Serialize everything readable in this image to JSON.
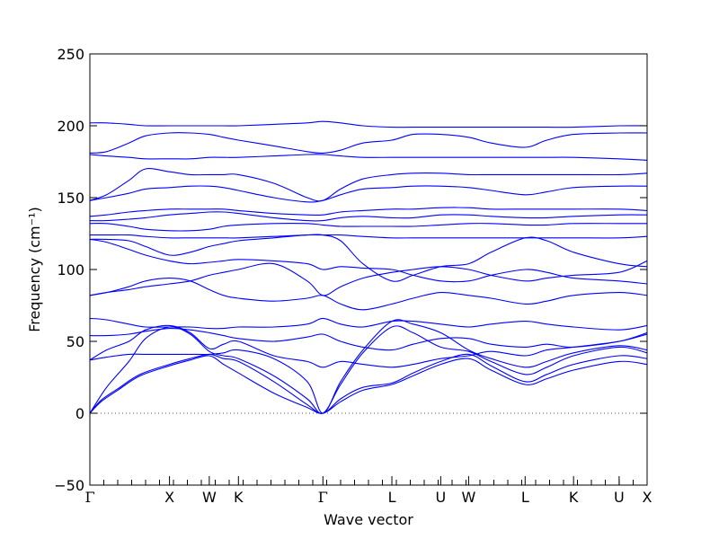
{
  "chart_data": {
    "type": "line",
    "title": "",
    "xlabel": "Wave vector",
    "ylabel": "Frequency (cm⁻¹)",
    "ylim": [
      -50,
      250
    ],
    "yticks": [
      -50,
      0,
      50,
      100,
      150,
      200,
      250
    ],
    "ytick_labels": [
      "−50",
      "0",
      "50",
      "100",
      "150",
      "200",
      "250"
    ],
    "grid": false,
    "legend": "none",
    "zero_line": {
      "y": 0,
      "style": "dotted",
      "color": "#555555"
    },
    "line_color": "#0000ff",
    "high_symmetry_points": [
      {
        "label": "Γ",
        "x": 0.0
      },
      {
        "label": "X",
        "x": 0.1429
      },
      {
        "label": "W",
        "x": 0.2143
      },
      {
        "label": "K",
        "x": 0.2666
      },
      {
        "label": "Γ",
        "x": 0.4182
      },
      {
        "label": "L",
        "x": 0.542
      },
      {
        "label": "U",
        "x": 0.6296
      },
      {
        "label": "W",
        "x": 0.6797
      },
      {
        "label": "L",
        "x": 0.7811
      },
      {
        "label": "K",
        "x": 0.868
      },
      {
        "label": "U",
        "x": 0.9498
      },
      {
        "label": "X",
        "x": 1.0
      }
    ],
    "x_minor_ticks": 40,
    "series": [
      {
        "x": [
          0,
          0.02,
          0.05,
          0.09,
          0.1429,
          0.18,
          0.2143,
          0.24,
          0.2666,
          0.33,
          0.39,
          0.4182,
          0.45,
          0.49,
          0.542,
          0.58,
          0.6296,
          0.6797,
          0.72,
          0.7811,
          0.82,
          0.868,
          0.9498,
          1.0
        ],
        "y": [
          0,
          8,
          16,
          26,
          33,
          37,
          40,
          34,
          28,
          14,
          4,
          0,
          8,
          16,
          20,
          26,
          34,
          38,
          30,
          20,
          24,
          30,
          36,
          34
        ]
      },
      {
        "x": [
          0,
          0.02,
          0.05,
          0.09,
          0.1429,
          0.18,
          0.2143,
          0.24,
          0.2666,
          0.33,
          0.39,
          0.4182,
          0.45,
          0.49,
          0.542,
          0.58,
          0.6296,
          0.6797,
          0.72,
          0.7811,
          0.82,
          0.868,
          0.9498,
          1.0
        ],
        "y": [
          0,
          9,
          17,
          27,
          34,
          38,
          41,
          38,
          36,
          22,
          6,
          0,
          10,
          18,
          21,
          28,
          36,
          41,
          33,
          22,
          27,
          34,
          40,
          38
        ]
      },
      {
        "x": [
          0,
          0.03,
          0.07,
          0.1,
          0.1429,
          0.18,
          0.2143,
          0.24,
          0.2666,
          0.33,
          0.39,
          0.4182,
          0.45,
          0.49,
          0.542,
          0.58,
          0.6296,
          0.6797,
          0.72,
          0.7811,
          0.82,
          0.868,
          0.9498,
          1.0
        ],
        "y": [
          0,
          18,
          36,
          52,
          60,
          55,
          43,
          40,
          38,
          26,
          10,
          0,
          20,
          42,
          60,
          56,
          46,
          43,
          36,
          27,
          32,
          40,
          46,
          42
        ]
      },
      {
        "x": [
          0,
          0.03,
          0.07,
          0.1,
          0.1429,
          0.18,
          0.2143,
          0.24,
          0.2666,
          0.33,
          0.39,
          0.4182,
          0.45,
          0.49,
          0.542,
          0.58,
          0.6296,
          0.6797,
          0.72,
          0.7811,
          0.82,
          0.868,
          0.9498,
          1.0
        ],
        "y": [
          37,
          39,
          41,
          41,
          41,
          41,
          41,
          42,
          44,
          38,
          22,
          0,
          22,
          44,
          64,
          62,
          56,
          44,
          38,
          32,
          36,
          42,
          47,
          44
        ]
      },
      {
        "x": [
          0,
          0.03,
          0.07,
          0.1,
          0.1429,
          0.18,
          0.2143,
          0.24,
          0.2666,
          0.33,
          0.39,
          0.4182,
          0.45,
          0.49,
          0.542,
          0.58,
          0.6296,
          0.6797,
          0.72,
          0.7811,
          0.82,
          0.868,
          0.9498,
          1.0
        ],
        "y": [
          37,
          44,
          50,
          58,
          61,
          56,
          45,
          48,
          50,
          40,
          36,
          32,
          36,
          34,
          32,
          34,
          38,
          40,
          43,
          40,
          44,
          46,
          50,
          55
        ]
      },
      {
        "x": [
          0,
          0.03,
          0.07,
          0.1,
          0.1429,
          0.18,
          0.2143,
          0.24,
          0.2666,
          0.33,
          0.39,
          0.4182,
          0.45,
          0.49,
          0.542,
          0.58,
          0.6296,
          0.6797,
          0.72,
          0.7811,
          0.82,
          0.868,
          0.9498,
          1.0
        ],
        "y": [
          54,
          54,
          55,
          57,
          59,
          58,
          56,
          54,
          52,
          50,
          53,
          55,
          50,
          46,
          44,
          48,
          52,
          52,
          48,
          46,
          48,
          46,
          50,
          56
        ]
      },
      {
        "x": [
          0,
          0.03,
          0.07,
          0.1,
          0.1429,
          0.18,
          0.2143,
          0.24,
          0.2666,
          0.33,
          0.39,
          0.4182,
          0.45,
          0.49,
          0.542,
          0.58,
          0.6296,
          0.6797,
          0.72,
          0.7811,
          0.82,
          0.868,
          0.9498,
          1.0
        ],
        "y": [
          66,
          65,
          62,
          60,
          60,
          60,
          59,
          59,
          60,
          60,
          62,
          66,
          62,
          60,
          64,
          64,
          62,
          60,
          62,
          64,
          62,
          60,
          58,
          61
        ]
      },
      {
        "x": [
          0,
          0.03,
          0.07,
          0.1,
          0.1429,
          0.18,
          0.2143,
          0.24,
          0.2666,
          0.33,
          0.39,
          0.4182,
          0.45,
          0.49,
          0.542,
          0.58,
          0.6296,
          0.6797,
          0.72,
          0.7811,
          0.82,
          0.868,
          0.9498,
          1.0
        ],
        "y": [
          82,
          84,
          88,
          92,
          94,
          92,
          86,
          82,
          80,
          78,
          80,
          82,
          76,
          72,
          76,
          80,
          84,
          82,
          80,
          76,
          78,
          82,
          84,
          82
        ]
      },
      {
        "x": [
          0,
          0.03,
          0.07,
          0.1,
          0.1429,
          0.18,
          0.2143,
          0.24,
          0.2666,
          0.33,
          0.39,
          0.4182,
          0.45,
          0.49,
          0.542,
          0.58,
          0.6296,
          0.6797,
          0.72,
          0.7811,
          0.82,
          0.868,
          0.9498,
          1.0
        ],
        "y": [
          82,
          84,
          86,
          88,
          90,
          92,
          96,
          98,
          100,
          104,
          92,
          82,
          88,
          94,
          98,
          100,
          102,
          100,
          96,
          92,
          94,
          96,
          98,
          106
        ]
      },
      {
        "x": [
          0,
          0.03,
          0.07,
          0.1,
          0.1429,
          0.18,
          0.2143,
          0.24,
          0.2666,
          0.33,
          0.39,
          0.4182,
          0.45,
          0.49,
          0.542,
          0.58,
          0.6296,
          0.6797,
          0.72,
          0.7811,
          0.82,
          0.868,
          0.9498,
          1.0
        ],
        "y": [
          121,
          119,
          114,
          110,
          106,
          104,
          105,
          106,
          107,
          106,
          104,
          100,
          102,
          101,
          100,
          96,
          92,
          92,
          96,
          100,
          98,
          94,
          92,
          90
        ]
      },
      {
        "x": [
          0,
          0.03,
          0.07,
          0.1,
          0.1429,
          0.18,
          0.2143,
          0.24,
          0.2666,
          0.33,
          0.39,
          0.4182,
          0.45,
          0.49,
          0.542,
          0.58,
          0.6296,
          0.6797,
          0.72,
          0.7811,
          0.82,
          0.868,
          0.9498,
          1.0
        ],
        "y": [
          121,
          121,
          120,
          116,
          110,
          112,
          116,
          118,
          120,
          122,
          124,
          124,
          120,
          104,
          92,
          96,
          102,
          104,
          112,
          122,
          120,
          112,
          104,
          102
        ]
      },
      {
        "x": [
          0,
          0.03,
          0.07,
          0.1,
          0.1429,
          0.18,
          0.2143,
          0.24,
          0.2666,
          0.33,
          0.39,
          0.4182,
          0.45,
          0.49,
          0.542,
          0.58,
          0.6296,
          0.6797,
          0.72,
          0.7811,
          0.82,
          0.868,
          0.9498,
          1.0
        ],
        "y": [
          124,
          124,
          124,
          123,
          122,
          122,
          122,
          122,
          122,
          123,
          124,
          124,
          124,
          123,
          122,
          122,
          122,
          122,
          122,
          122,
          122,
          122,
          122,
          123
        ]
      },
      {
        "x": [
          0,
          0.03,
          0.07,
          0.1,
          0.1429,
          0.18,
          0.2143,
          0.24,
          0.2666,
          0.33,
          0.39,
          0.4182,
          0.45,
          0.49,
          0.542,
          0.58,
          0.6296,
          0.6797,
          0.72,
          0.7811,
          0.82,
          0.868,
          0.9498,
          1.0
        ],
        "y": [
          132,
          132,
          130,
          128,
          127,
          127,
          128,
          130,
          131,
          132,
          132,
          131,
          130,
          130,
          130,
          130,
          131,
          132,
          132,
          131,
          131,
          132,
          132,
          132
        ]
      },
      {
        "x": [
          0,
          0.03,
          0.07,
          0.1,
          0.1429,
          0.18,
          0.2143,
          0.24,
          0.2666,
          0.33,
          0.39,
          0.4182,
          0.45,
          0.49,
          0.542,
          0.58,
          0.6296,
          0.6797,
          0.72,
          0.7811,
          0.82,
          0.868,
          0.9498,
          1.0
        ],
        "y": [
          134,
          134,
          135,
          136,
          138,
          139,
          140,
          140,
          139,
          136,
          134,
          134,
          136,
          137,
          136,
          136,
          138,
          138,
          137,
          136,
          136,
          137,
          138,
          138
        ]
      },
      {
        "x": [
          0,
          0.03,
          0.07,
          0.1,
          0.1429,
          0.18,
          0.2143,
          0.24,
          0.2666,
          0.33,
          0.39,
          0.4182,
          0.45,
          0.49,
          0.542,
          0.58,
          0.6296,
          0.6797,
          0.72,
          0.7811,
          0.82,
          0.868,
          0.9498,
          1.0
        ],
        "y": [
          137,
          138,
          140,
          141,
          142,
          142,
          142,
          142,
          141,
          139,
          138,
          138,
          140,
          141,
          142,
          142,
          143,
          143,
          142,
          142,
          142,
          142,
          142,
          141
        ]
      },
      {
        "x": [
          0,
          0.03,
          0.07,
          0.1,
          0.1429,
          0.18,
          0.2143,
          0.24,
          0.2666,
          0.33,
          0.39,
          0.4182,
          0.45,
          0.49,
          0.542,
          0.58,
          0.6296,
          0.6797,
          0.72,
          0.7811,
          0.82,
          0.868,
          0.9498,
          1.0
        ],
        "y": [
          148,
          150,
          153,
          156,
          157,
          158,
          158,
          157,
          155,
          150,
          147,
          148,
          152,
          156,
          157,
          158,
          158,
          157,
          155,
          152,
          154,
          157,
          158,
          158
        ]
      },
      {
        "x": [
          0,
          0.03,
          0.07,
          0.1,
          0.1429,
          0.18,
          0.2143,
          0.24,
          0.2666,
          0.33,
          0.39,
          0.4182,
          0.45,
          0.49,
          0.542,
          0.58,
          0.6296,
          0.6797,
          0.72,
          0.7811,
          0.82,
          0.868,
          0.9498,
          1.0
        ],
        "y": [
          148,
          152,
          162,
          170,
          168,
          166,
          166,
          166,
          166,
          160,
          150,
          148,
          156,
          163,
          166,
          167,
          167,
          166,
          166,
          166,
          166,
          166,
          166,
          167
        ]
      },
      {
        "x": [
          0,
          0.03,
          0.07,
          0.1,
          0.1429,
          0.18,
          0.2143,
          0.24,
          0.2666,
          0.33,
          0.39,
          0.4182,
          0.45,
          0.49,
          0.542,
          0.58,
          0.6296,
          0.6797,
          0.72,
          0.7811,
          0.82,
          0.868,
          0.9498,
          1.0
        ],
        "y": [
          180,
          179,
          178,
          177,
          177,
          177,
          178,
          178,
          178,
          179,
          180,
          180,
          179,
          178,
          178,
          178,
          178,
          178,
          178,
          178,
          178,
          178,
          177,
          176
        ]
      },
      {
        "x": [
          0,
          0.03,
          0.07,
          0.1,
          0.1429,
          0.18,
          0.2143,
          0.24,
          0.2666,
          0.33,
          0.39,
          0.4182,
          0.45,
          0.49,
          0.542,
          0.58,
          0.6296,
          0.6797,
          0.72,
          0.7811,
          0.82,
          0.868,
          0.9498,
          1.0
        ],
        "y": [
          181,
          182,
          188,
          193,
          195,
          195,
          194,
          192,
          190,
          186,
          182,
          181,
          183,
          188,
          190,
          194,
          194,
          192,
          188,
          185,
          190,
          194,
          195,
          195
        ]
      },
      {
        "x": [
          0,
          0.03,
          0.07,
          0.1,
          0.1429,
          0.18,
          0.2143,
          0.24,
          0.2666,
          0.33,
          0.39,
          0.4182,
          0.45,
          0.49,
          0.542,
          0.58,
          0.6296,
          0.6797,
          0.72,
          0.7811,
          0.82,
          0.868,
          0.9498,
          1.0
        ],
        "y": [
          202,
          202,
          201,
          200,
          200,
          200,
          200,
          200,
          200,
          201,
          202,
          203,
          202,
          200,
          199,
          199,
          199,
          199,
          199,
          199,
          199,
          199,
          200,
          200
        ]
      }
    ]
  }
}
